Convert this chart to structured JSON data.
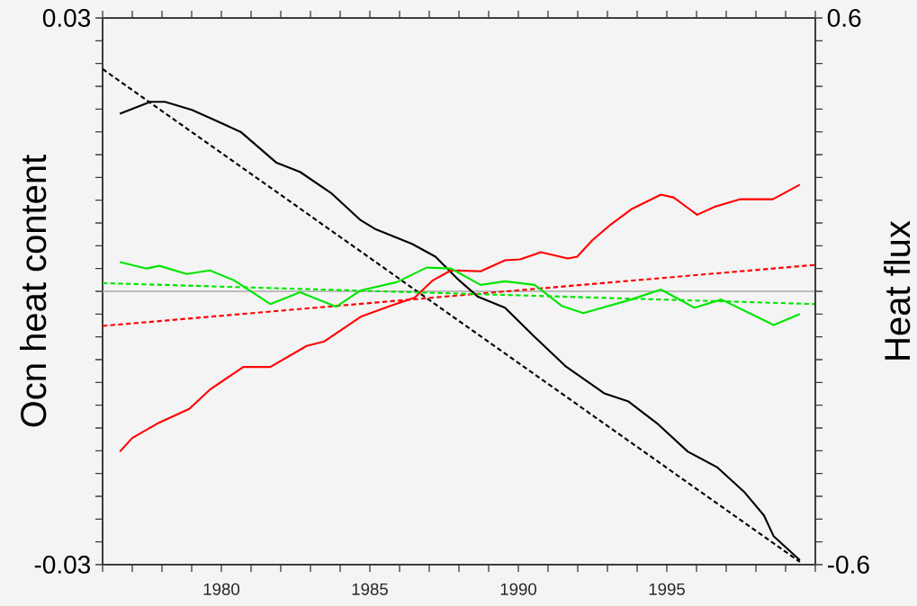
{
  "chart_data": {
    "type": "line",
    "ylabel": "Ocn heat content",
    "y2label": "Heat flux",
    "xlim": [
      1976,
      2000
    ],
    "ylim": [
      -0.03,
      0.03
    ],
    "y2lim": [
      -0.6,
      0.6
    ],
    "xticks": [
      {
        "value": 1976,
        "label": null
      },
      {
        "value": 1977,
        "label": null
      },
      {
        "value": 1978,
        "label": null
      },
      {
        "value": 1979,
        "label": null
      },
      1980,
      {
        "value": 1981,
        "label": null
      },
      {
        "value": 1982,
        "label": null
      },
      {
        "value": 1983,
        "label": null
      },
      {
        "value": 1984,
        "label": null
      },
      1985,
      {
        "value": 1986,
        "label": null
      },
      {
        "value": 1987,
        "label": null
      },
      {
        "value": 1988,
        "label": null
      },
      {
        "value": 1989,
        "label": null
      },
      1990,
      {
        "value": 1991,
        "label": null
      },
      {
        "value": 1992,
        "label": null
      },
      {
        "value": 1993,
        "label": null
      },
      {
        "value": 1994,
        "label": null
      },
      1995,
      {
        "value": 1996,
        "label": null
      },
      {
        "value": 1997,
        "label": null
      },
      {
        "value": 1998,
        "label": null
      },
      {
        "value": 1999,
        "label": null
      },
      {
        "value": 2000,
        "label": null
      }
    ],
    "yticks": [
      -0.03,
      {
        "value": -0.0275,
        "label": null
      },
      {
        "value": -0.025,
        "label": null
      },
      {
        "value": -0.0225,
        "label": null
      },
      {
        "value": -0.02,
        "label": null
      },
      {
        "value": -0.0175,
        "label": null
      },
      {
        "value": -0.015,
        "label": null
      },
      {
        "value": -0.0125,
        "label": null
      },
      {
        "value": -0.01,
        "label": null
      },
      {
        "value": -0.0075,
        "label": null
      },
      {
        "value": -0.005,
        "label": null
      },
      {
        "value": -0.0025,
        "label": null
      },
      {
        "value": 0,
        "label": null
      },
      {
        "value": 0.0025,
        "label": null
      },
      {
        "value": 0.005,
        "label": null
      },
      {
        "value": 0.0075,
        "label": null
      },
      {
        "value": 0.01,
        "label": null
      },
      {
        "value": 0.0125,
        "label": null
      },
      {
        "value": 0.015,
        "label": null
      },
      {
        "value": 0.0175,
        "label": null
      },
      {
        "value": 0.02,
        "label": null
      },
      {
        "value": 0.0225,
        "label": null
      },
      {
        "value": 0.025,
        "label": null
      },
      {
        "value": 0.0275,
        "label": null
      },
      0.03
    ],
    "y2ticks": [
      -0.6,
      {
        "value": -0.55,
        "label": null
      },
      {
        "value": -0.5,
        "label": null
      },
      {
        "value": -0.45,
        "label": null
      },
      {
        "value": -0.4,
        "label": null
      },
      {
        "value": -0.35,
        "label": null
      },
      {
        "value": -0.3,
        "label": null
      },
      {
        "value": -0.25,
        "label": null
      },
      {
        "value": -0.2,
        "label": null
      },
      {
        "value": -0.15,
        "label": null
      },
      {
        "value": -0.1,
        "label": null
      },
      {
        "value": -0.05,
        "label": null
      },
      {
        "value": 0,
        "label": null
      },
      {
        "value": 0.05,
        "label": null
      },
      {
        "value": 0.1,
        "label": null
      },
      {
        "value": 0.15,
        "label": null
      },
      {
        "value": 0.2,
        "label": null
      },
      {
        "value": 0.25,
        "label": null
      },
      {
        "value": 0.3,
        "label": null
      },
      {
        "value": 0.35,
        "label": null
      },
      {
        "value": 0.4,
        "label": null
      },
      {
        "value": 0.45,
        "label": null
      },
      {
        "value": 0.5,
        "label": null
      },
      {
        "value": 0.55,
        "label": null
      },
      0.6
    ],
    "marker": "none",
    "ref_lines": [
      {
        "axis": "y",
        "value": 0,
        "color": "#aaaaaa"
      }
    ],
    "series": [
      {
        "color": "#000000",
        "line_style": "solid",
        "x": [
          1976.58,
          1977.61,
          1978.1,
          1979.01,
          1980.04,
          1980.65,
          1981.86,
          1982.65,
          1983.69,
          1984.69,
          1985.2,
          1986.42,
          1987.21,
          1987.94,
          1988.64,
          1989.55,
          1990.55,
          1991.58,
          1992.89,
          1993.71,
          1994.71,
          1995.71,
          1996.69,
          1997.6,
          1998.27,
          1998.6,
          1999.48
        ],
        "values": [
          0.0195,
          0.0208,
          0.0208,
          0.0199,
          0.0184,
          0.0175,
          0.0141,
          0.0131,
          0.0108,
          0.0078,
          0.0068,
          0.0052,
          0.0038,
          0.0014,
          -0.0006,
          -0.0018,
          -0.005,
          -0.0082,
          -0.0112,
          -0.0121,
          -0.0146,
          -0.0176,
          -0.0193,
          -0.022,
          -0.0246,
          -0.0269,
          -0.0295
        ]
      },
      {
        "color": "#000000",
        "line_style": "dashed",
        "x": [
          1976,
          1999.48
        ],
        "values": [
          0.0244,
          -0.0297
        ]
      },
      {
        "color": "#ff0000",
        "line_style": "solid",
        "x": [
          1976.58,
          1977.0,
          1977.91,
          1978.92,
          1979.61,
          1980.74,
          1981.65,
          1982.87,
          1983.47,
          1984.69,
          1985.69,
          1986.51,
          1987.12,
          1987.73,
          1988.73,
          1989.55,
          1990.06,
          1990.76,
          1991.67,
          1991.98,
          1992.49,
          1993.1,
          1993.8,
          1994.8,
          1995.23,
          1996.02,
          1996.63,
          1997.45,
          1998.57,
          1999.48
        ],
        "values": [
          -0.0176,
          -0.0161,
          -0.0144,
          -0.0129,
          -0.0108,
          -0.0083,
          -0.0083,
          -0.006,
          -0.0055,
          -0.0028,
          -0.0016,
          -0.0007,
          0.0012,
          0.0023,
          0.0022,
          0.0034,
          0.0035,
          0.0043,
          0.0036,
          0.0038,
          0.0056,
          0.0073,
          0.009,
          0.0106,
          0.0103,
          0.0084,
          0.0093,
          0.0101,
          0.0101,
          0.0117
        ]
      },
      {
        "color": "#ff0000",
        "line_style": "dashed",
        "x": [
          1976,
          2000
        ],
        "values": [
          -0.0038,
          0.0029
        ]
      },
      {
        "color": "#00e600",
        "line_style": "solid",
        "x": [
          1976.58,
          1977.49,
          1977.91,
          1978.83,
          1979.61,
          1980.43,
          1981.65,
          1982.65,
          1983.87,
          1984.69,
          1985.9,
          1986.91,
          1987.73,
          1988.73,
          1989.55,
          1990.55,
          1991.46,
          1992.19,
          1993.8,
          1994.8,
          1995.93,
          1996.84,
          1998.6,
          1999.48
        ],
        "values": [
          0.0032,
          0.0025,
          0.0028,
          0.0019,
          0.0023,
          0.0012,
          -0.0014,
          -0.0001,
          -0.0017,
          0.0001,
          0.001,
          0.0026,
          0.0025,
          0.0007,
          0.0011,
          0.0007,
          -0.0016,
          -0.0024,
          -0.0009,
          0.0002,
          -0.0018,
          -0.0009,
          -0.0037,
          -0.0025
        ]
      },
      {
        "color": "#00e600",
        "line_style": "dashed",
        "x": [
          1976,
          2000
        ],
        "values": [
          0.0009,
          -0.0014
        ]
      }
    ]
  }
}
